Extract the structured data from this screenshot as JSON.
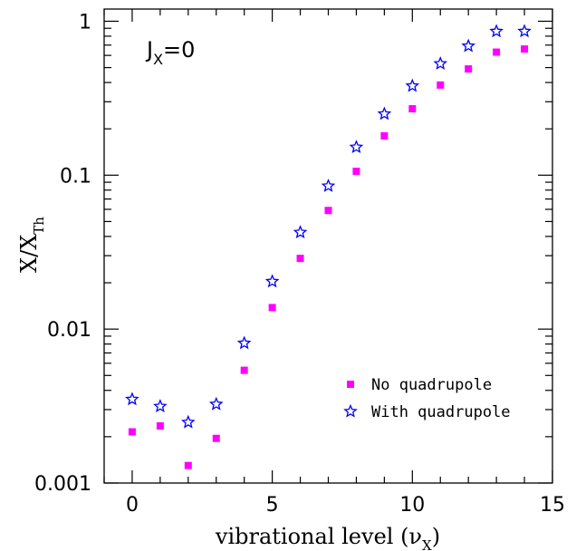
{
  "chart_data": {
    "type": "scatter",
    "xlabel": "vibrational level (ν",
    "xlabel_sub": "X",
    "xlabel_close": ")",
    "ylabel": "X/X",
    "ylabel_sub": "Th",
    "annotation": "J",
    "annotation_sub": "X",
    "annotation_rest": "=0",
    "xlim": [
      -1,
      15
    ],
    "ylim": [
      0.001,
      1.2
    ],
    "yscale": "log",
    "x_ticks": [
      0,
      5,
      10,
      15
    ],
    "x_tick_labels": [
      "0",
      "5",
      "10",
      "15"
    ],
    "y_ticks": [
      0.001,
      0.01,
      0.1,
      1
    ],
    "y_tick_labels": [
      "0.001",
      "0.01",
      "0.1",
      "1"
    ],
    "legend_position": "bottom-right",
    "series": [
      {
        "name": "No quadrupole",
        "marker": "square",
        "color": "#ff00ff",
        "x": [
          0,
          1,
          2,
          3,
          4,
          5,
          6,
          7,
          8,
          9,
          10,
          11,
          12,
          13,
          14
        ],
        "y": [
          0.00215,
          0.00235,
          0.0013,
          0.00195,
          0.0054,
          0.0138,
          0.0288,
          0.059,
          0.106,
          0.18,
          0.27,
          0.385,
          0.49,
          0.63,
          0.66
        ]
      },
      {
        "name": "With quadrupole",
        "marker": "star",
        "color": "#0000ff",
        "x": [
          0,
          1,
          2,
          3,
          4,
          5,
          6,
          7,
          8,
          9,
          10,
          11,
          12,
          13,
          14
        ],
        "y": [
          0.0035,
          0.00315,
          0.00248,
          0.00325,
          0.0081,
          0.0204,
          0.0425,
          0.085,
          0.152,
          0.25,
          0.38,
          0.53,
          0.69,
          0.86,
          0.86
        ]
      }
    ]
  }
}
